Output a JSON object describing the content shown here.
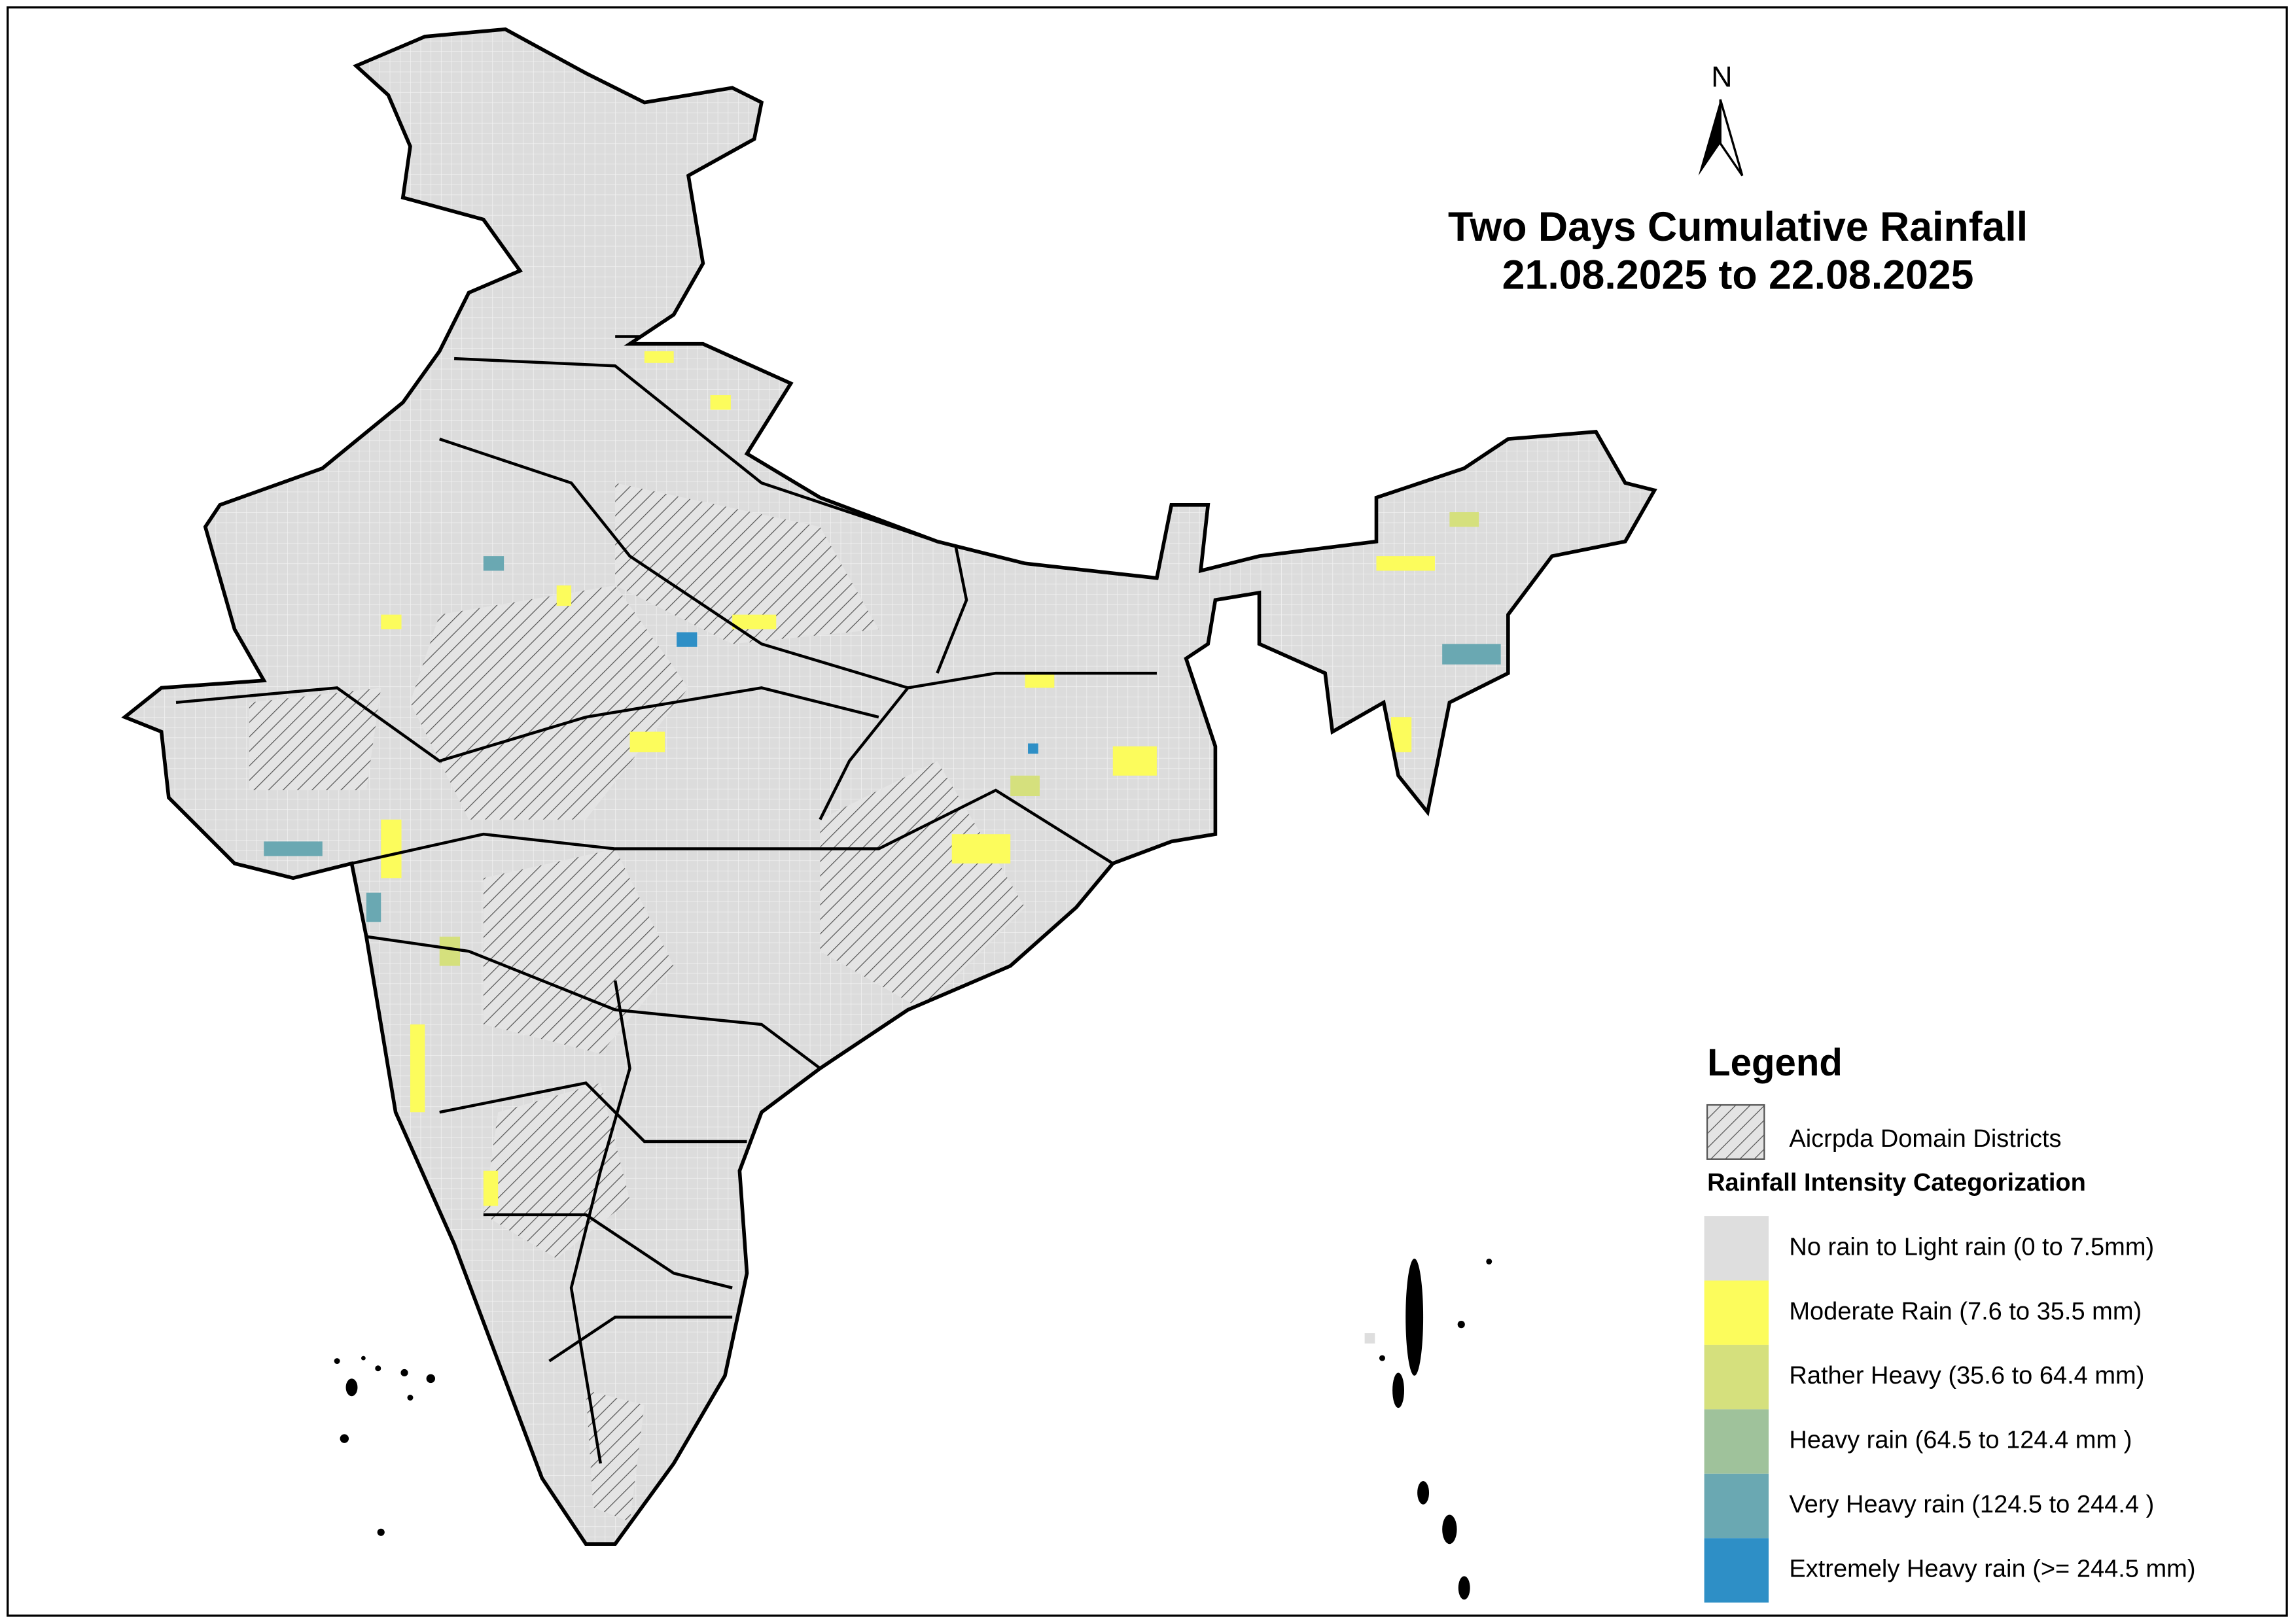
{
  "north": "N",
  "title": [
    "Two Days Cumulative Rainfall",
    "21.08.2025 to 22.08.2025"
  ],
  "legend": {
    "title": "Legend",
    "hatch_label": "Aicrpda Domain Districts",
    "section_title": "Rainfall Intensity Categorization",
    "categories": [
      {
        "label": "No rain to Light rain (0 to 7.5mm)",
        "color": "#dedede"
      },
      {
        "label": "Moderate Rain (7.6 to 35.5 mm)",
        "color": "#fcfc5c"
      },
      {
        "label": "Rather Heavy (35.6 to 64.4 mm)",
        "color": "#d5e07d"
      },
      {
        "label": "Heavy rain (64.5 to 124.4 mm )",
        "color": "#9fc29b"
      },
      {
        "label": "Very Heavy rain (124.5 to 244.4 )",
        "color": "#6aa8b2"
      },
      {
        "label": "Extremely Heavy rain  (>= 244.5 mm)",
        "color": "#2e8fc6"
      }
    ]
  }
}
